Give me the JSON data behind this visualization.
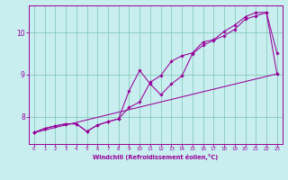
{
  "xlabel": "Windchill (Refroidissement éolien,°C)",
  "bg_color": "#c8eef0",
  "line_color": "#990099",
  "grid_color": "#88ccbb",
  "xlim": [
    -0.5,
    23.5
  ],
  "ylim": [
    7.35,
    10.65
  ],
  "xticks": [
    0,
    1,
    2,
    3,
    4,
    5,
    6,
    7,
    8,
    9,
    10,
    11,
    12,
    13,
    14,
    15,
    16,
    17,
    18,
    19,
    20,
    21,
    22,
    23
  ],
  "yticks": [
    8,
    9,
    10
  ],
  "line1_x": [
    0,
    1,
    2,
    3,
    4,
    5,
    6,
    7,
    8,
    9,
    10,
    11,
    12,
    13,
    14,
    15,
    16,
    17,
    18,
    19,
    20,
    21,
    22,
    23
  ],
  "line1_y": [
    7.62,
    7.72,
    7.78,
    7.83,
    7.83,
    7.65,
    7.8,
    7.88,
    7.95,
    8.62,
    9.1,
    8.78,
    8.52,
    8.78,
    8.97,
    9.5,
    9.7,
    9.82,
    9.93,
    10.08,
    10.32,
    10.4,
    10.48,
    9.02
  ],
  "line2_x": [
    0,
    1,
    2,
    3,
    4,
    5,
    6,
    7,
    8,
    9,
    10,
    11,
    12,
    13,
    14,
    15,
    16,
    17,
    18,
    19,
    20,
    21,
    22,
    23
  ],
  "line2_y": [
    7.62,
    7.72,
    7.78,
    7.83,
    7.83,
    7.65,
    7.8,
    7.88,
    7.95,
    8.22,
    8.35,
    8.82,
    8.98,
    9.32,
    9.45,
    9.52,
    9.78,
    9.83,
    10.03,
    10.18,
    10.38,
    10.48,
    10.48,
    9.52
  ],
  "line3_x": [
    0,
    23
  ],
  "line3_y": [
    7.62,
    9.02
  ]
}
